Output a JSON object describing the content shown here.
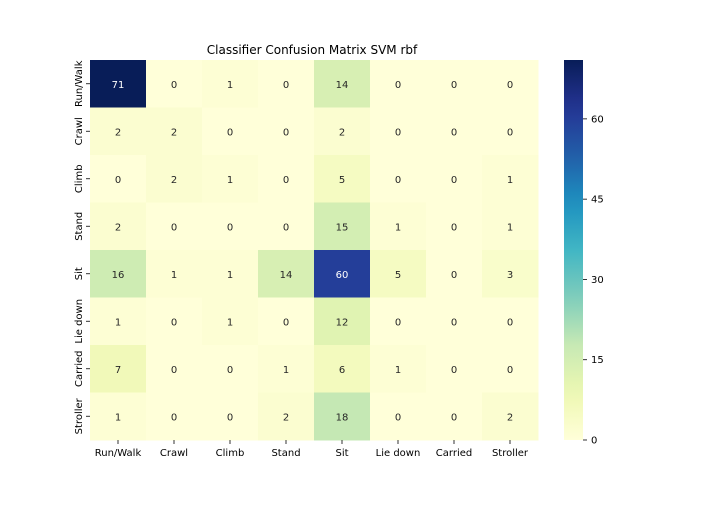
{
  "chart_data": {
    "type": "heatmap",
    "title": "Classifier Confusion Matrix SVM rbf",
    "xlabel": "",
    "ylabel": "",
    "x_categories": [
      "Run/Walk",
      "Crawl",
      "Climb",
      "Stand",
      "Sit",
      "Lie down",
      "Carried",
      "Stroller"
    ],
    "y_categories": [
      "Run/Walk",
      "Crawl",
      "Climb",
      "Stand",
      "Sit",
      "Lie down",
      "Carried",
      "Stroller"
    ],
    "values": [
      [
        71,
        0,
        1,
        0,
        14,
        0,
        0,
        0
      ],
      [
        2,
        2,
        0,
        0,
        2,
        0,
        0,
        0
      ],
      [
        0,
        2,
        1,
        0,
        5,
        0,
        0,
        1
      ],
      [
        2,
        0,
        0,
        0,
        15,
        1,
        0,
        1
      ],
      [
        16,
        1,
        1,
        14,
        60,
        5,
        0,
        3
      ],
      [
        1,
        0,
        1,
        0,
        12,
        0,
        0,
        0
      ],
      [
        7,
        0,
        0,
        1,
        6,
        1,
        0,
        0
      ],
      [
        1,
        0,
        0,
        2,
        18,
        0,
        0,
        2
      ]
    ],
    "colorbar": {
      "colormap": "YlGnBu",
      "vmin": 0,
      "vmax": 71,
      "ticks": [
        0,
        15,
        30,
        45,
        60
      ]
    },
    "grid": false,
    "legend": "colorbar-right"
  }
}
